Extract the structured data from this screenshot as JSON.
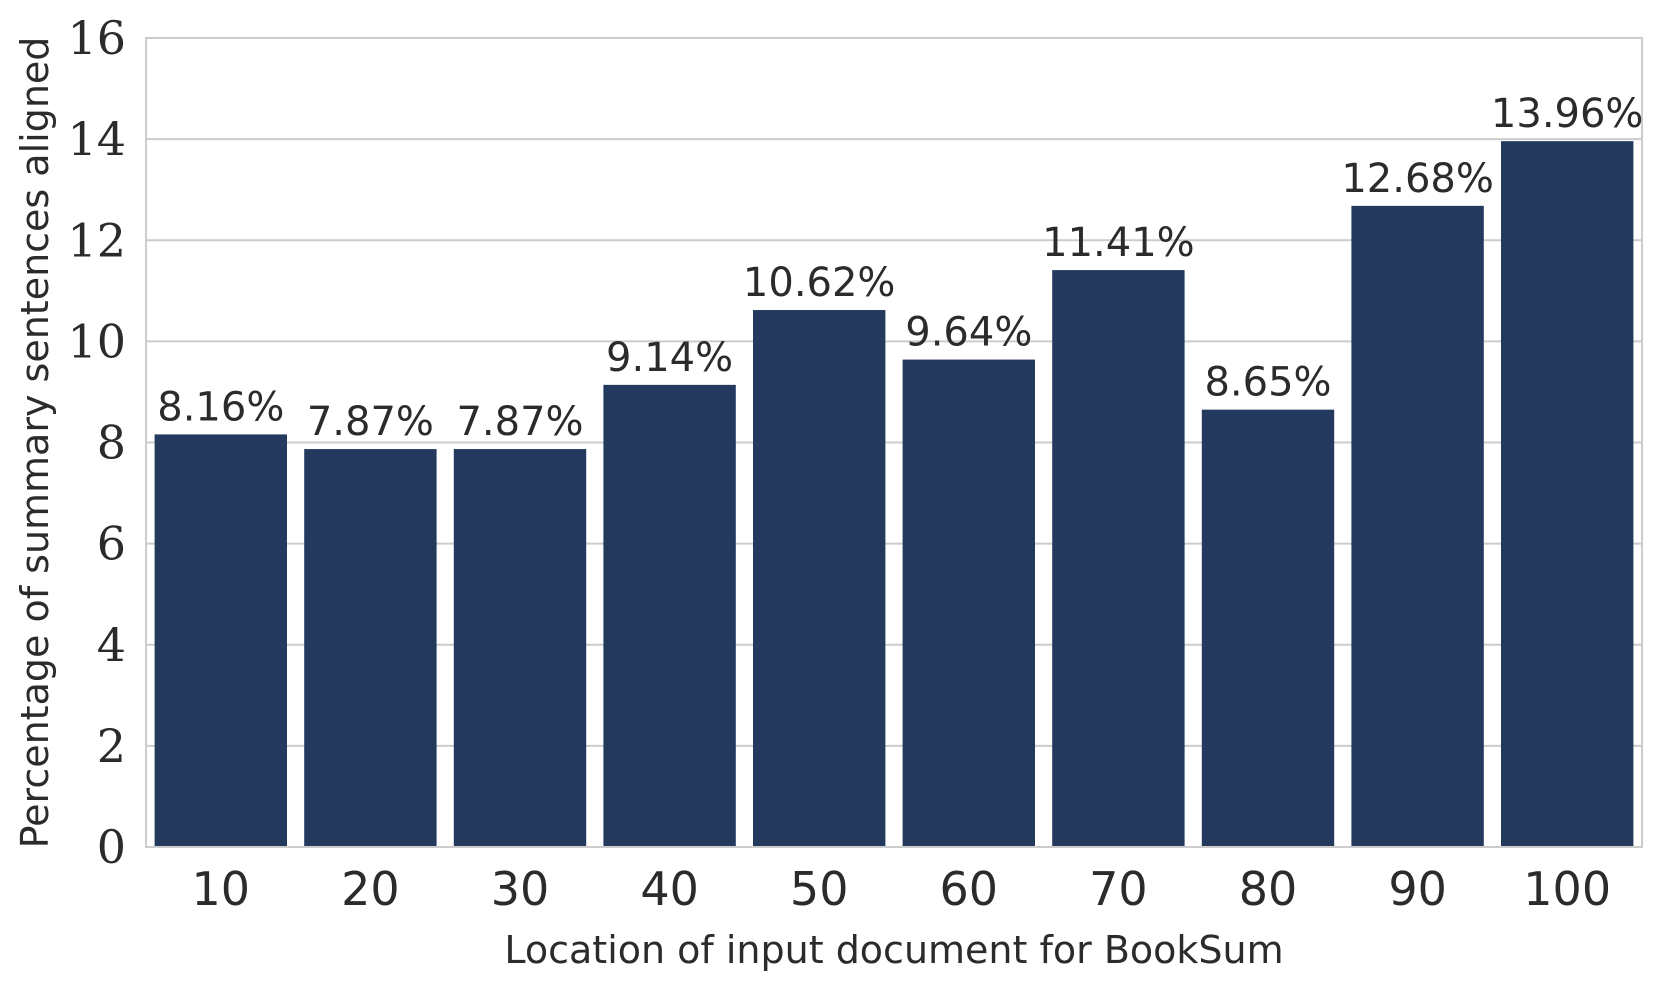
{
  "chart_data": {
    "type": "bar",
    "categories": [
      "10",
      "20",
      "30",
      "40",
      "50",
      "60",
      "70",
      "80",
      "90",
      "100"
    ],
    "values": [
      8.16,
      7.87,
      7.87,
      9.14,
      10.62,
      9.64,
      11.41,
      8.65,
      12.68,
      13.96
    ],
    "data_labels": [
      "8.16%",
      "7.87%",
      "7.87%",
      "9.14%",
      "10.62%",
      "9.64%",
      "11.41%",
      "8.65%",
      "12.68%",
      "13.96%"
    ],
    "title": "",
    "xlabel": "Location of input document for BookSum",
    "ylabel": "Percentage of summary sentences aligned",
    "ylim": [
      0,
      16
    ],
    "yticks": [
      0,
      2,
      4,
      6,
      8,
      10,
      12,
      14,
      16
    ],
    "grid": "horizontal",
    "legend": "none",
    "bar_color": "#233a5e",
    "grid_color": "#cccccc",
    "frame_color": "#cccccc"
  }
}
